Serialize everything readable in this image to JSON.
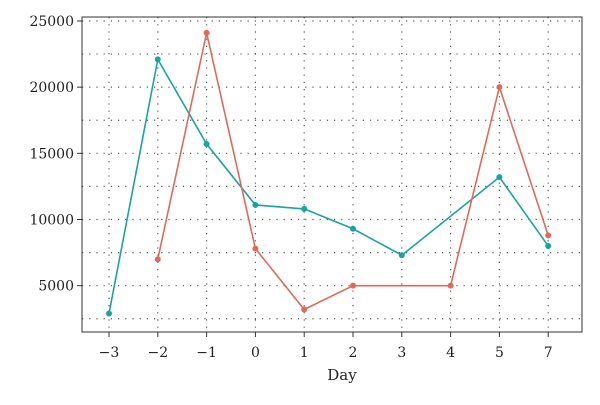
{
  "chart_data": {
    "type": "line",
    "title": "",
    "xlabel": "Day",
    "ylabel": "",
    "categories": [
      "−3",
      "−2",
      "−1",
      "0",
      "1",
      "2",
      "3",
      "4",
      "5",
      "7"
    ],
    "yticks": [
      "5000",
      "10000",
      "15000",
      "20000",
      "25000"
    ],
    "ytick_values": [
      5000,
      10000,
      15000,
      20000,
      25000
    ],
    "ylim": [
      1500,
      25300
    ],
    "grid": true,
    "series": [
      {
        "color": "#1aa3a3",
        "values": [
          2900,
          22100,
          15700,
          11100,
          10800,
          9300,
          7300,
          null,
          13200,
          8000
        ],
        "connect_gaps": true
      },
      {
        "color": "#e06a5a",
        "values": [
          null,
          7000,
          24100,
          7800,
          3200,
          5000,
          null,
          5000,
          20000,
          8800
        ],
        "connect_gaps": true
      }
    ]
  }
}
